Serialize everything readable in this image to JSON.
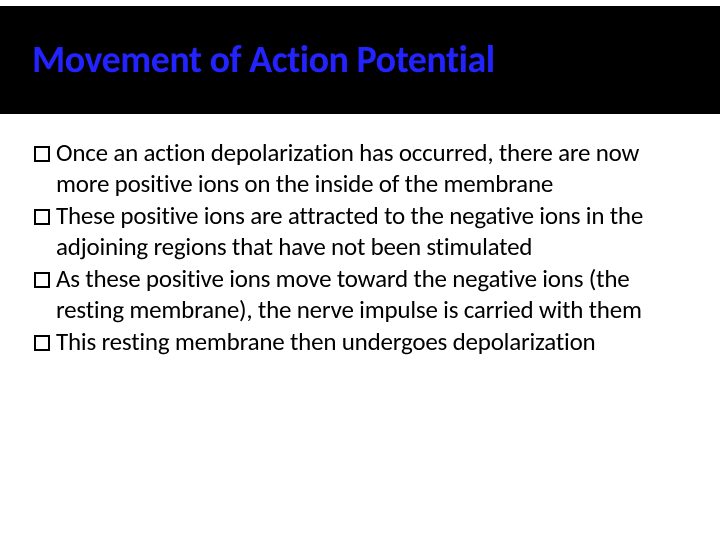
{
  "title": "Movement of Action Potential",
  "title_color": "#2323ff",
  "title_band_bg": "#000000",
  "title_fontsize": 38,
  "body_fontsize": 25,
  "body_color": "#000000",
  "background_color": "#ffffff",
  "bullet_marker_style": "hollow-square",
  "bullets": [
    "Once an action depolarization has occurred, there are now more positive ions on the inside of the membrane",
    "These positive ions are attracted to the negative ions in the adjoining regions that have not been stimulated",
    "As these positive ions move toward the negative ions (the resting membrane), the nerve impulse is carried with them",
    "This resting membrane then undergoes depolarization"
  ]
}
